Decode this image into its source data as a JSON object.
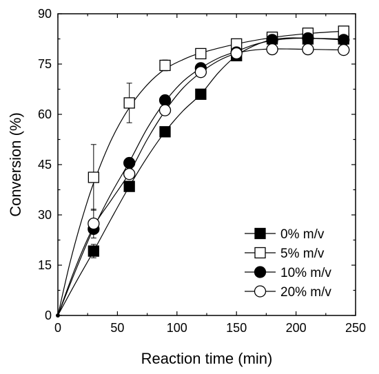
{
  "chart_data": {
    "type": "line",
    "title": "",
    "xlabel": "Reaction time (min)",
    "ylabel": "Conversion (%)",
    "xlim": [
      0,
      250
    ],
    "ylim": [
      0,
      90
    ],
    "xticks": [
      0,
      50,
      100,
      150,
      200,
      250
    ],
    "yticks": [
      0,
      15,
      30,
      45,
      60,
      75,
      90
    ],
    "grid": false,
    "legend_position": "bottom-right",
    "series": [
      {
        "name": "0% m/v",
        "marker": "filled-square",
        "color": "#000000",
        "x": [
          0,
          30,
          60,
          90,
          120,
          150,
          180,
          210,
          240
        ],
        "y": [
          0,
          19.2,
          38.5,
          54.8,
          66.0,
          77.5,
          82.5,
          82.5,
          82.5
        ],
        "error": [
          0,
          2.0,
          1.0,
          1.0,
          1.0,
          1.0,
          1.0,
          1.0,
          1.0
        ],
        "fit": [
          [
            0,
            0
          ],
          [
            15,
            9.8
          ],
          [
            30,
            19.2
          ],
          [
            45,
            29.0
          ],
          [
            60,
            38.5
          ],
          [
            75,
            47.2
          ],
          [
            90,
            54.8
          ],
          [
            105,
            61.0
          ],
          [
            120,
            66.0
          ],
          [
            135,
            72.5
          ],
          [
            150,
            77.5
          ],
          [
            165,
            80.5
          ],
          [
            180,
            82.3
          ],
          [
            195,
            82.8
          ],
          [
            210,
            82.7
          ],
          [
            225,
            82.6
          ],
          [
            240,
            82.5
          ]
        ]
      },
      {
        "name": "5% m/v",
        "marker": "open-square",
        "color": "#000000",
        "x": [
          0,
          30,
          60,
          90,
          120,
          150,
          180,
          210,
          240
        ],
        "y": [
          0,
          41.2,
          63.4,
          74.6,
          78.1,
          81.0,
          83.0,
          84.2,
          84.8
        ],
        "error": [
          0,
          9.8,
          5.9,
          1.6,
          1.0,
          1.0,
          1.0,
          1.0,
          1.0
        ],
        "fit": [
          [
            0,
            0
          ],
          [
            10,
            15.5
          ],
          [
            20,
            28.5
          ],
          [
            30,
            39.5
          ],
          [
            45,
            52.5
          ],
          [
            60,
            62.0
          ],
          [
            75,
            68.8
          ],
          [
            90,
            73.5
          ],
          [
            105,
            76.3
          ],
          [
            120,
            78.3
          ],
          [
            150,
            81.0
          ],
          [
            180,
            82.9
          ],
          [
            210,
            84.1
          ],
          [
            240,
            84.8
          ]
        ]
      },
      {
        "name": "10% m/v",
        "marker": "filled-circle",
        "color": "#000000",
        "x": [
          0,
          30,
          60,
          90,
          120,
          150,
          180,
          210,
          240
        ],
        "y": [
          0,
          25.8,
          45.5,
          64.2,
          73.8,
          78.5,
          82.2,
          82.7,
          82.2
        ],
        "error": [
          0,
          1.5,
          1.0,
          1.0,
          1.0,
          1.0,
          1.0,
          1.0,
          1.0
        ],
        "fit": [
          [
            0,
            0
          ],
          [
            15,
            13.5
          ],
          [
            30,
            26.0
          ],
          [
            45,
            36.5
          ],
          [
            60,
            45.8
          ],
          [
            75,
            55.8
          ],
          [
            90,
            63.8
          ],
          [
            105,
            69.8
          ],
          [
            120,
            73.8
          ],
          [
            135,
            76.8
          ],
          [
            150,
            78.8
          ],
          [
            165,
            80.8
          ],
          [
            180,
            82.0
          ],
          [
            195,
            82.6
          ],
          [
            210,
            82.7
          ],
          [
            225,
            82.5
          ],
          [
            240,
            82.2
          ]
        ]
      },
      {
        "name": "20% m/v",
        "marker": "open-circle",
        "color": "#000000",
        "x": [
          0,
          30,
          60,
          90,
          120,
          150,
          180,
          210,
          240
        ],
        "y": [
          0,
          27.4,
          42.2,
          61.2,
          72.6,
          78.2,
          79.4,
          79.4,
          79.2
        ],
        "error": [
          0,
          4.3,
          1.0,
          1.0,
          1.0,
          1.0,
          1.0,
          1.0,
          1.0
        ],
        "fit": [
          [
            0,
            0
          ],
          [
            15,
            14.5
          ],
          [
            30,
            26.5
          ],
          [
            45,
            34.5
          ],
          [
            60,
            42.5
          ],
          [
            75,
            52.5
          ],
          [
            90,
            61.0
          ],
          [
            105,
            67.8
          ],
          [
            120,
            72.5
          ],
          [
            135,
            76.0
          ],
          [
            150,
            78.2
          ],
          [
            165,
            79.2
          ],
          [
            180,
            79.5
          ],
          [
            195,
            79.5
          ],
          [
            210,
            79.4
          ],
          [
            225,
            79.3
          ],
          [
            240,
            79.2
          ]
        ]
      }
    ]
  }
}
